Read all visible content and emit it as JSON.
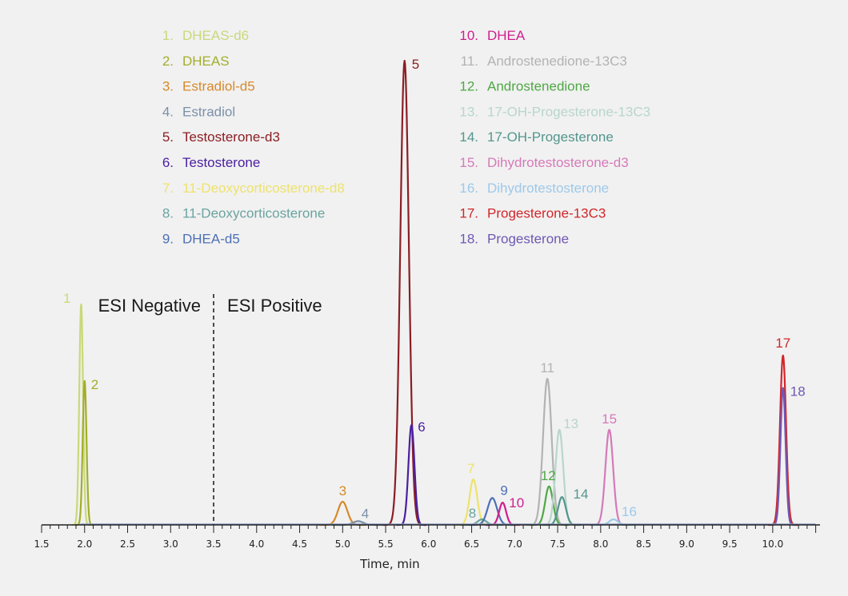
{
  "chart_data": {
    "type": "line",
    "xlabel": "Time, min",
    "xlim": [
      1.5,
      10.55
    ],
    "x_ticks": [
      "1.5",
      "2.0",
      "2.5",
      "3.0",
      "3.5",
      "4.0",
      "4.5",
      "5.0",
      "5.5",
      "6.0",
      "6.5",
      "7.0",
      "7.5",
      "8.0",
      "8.5",
      "9.0",
      "9.5",
      "10.0"
    ],
    "ylim": [
      0,
      100
    ],
    "grid": false,
    "legend_position": "top",
    "divider": {
      "x": 3.5,
      "left_label": "ESI Negative",
      "right_label": "ESI Positive"
    },
    "legend": [
      {
        "num": "1.",
        "name": "DHEAS-d6",
        "color": "#c8d97a"
      },
      {
        "num": "2.",
        "name": "DHEAS",
        "color": "#a3ae2a"
      },
      {
        "num": "3.",
        "name": "Estradiol-d5",
        "color": "#d7892b"
      },
      {
        "num": "4.",
        "name": "Estradiol",
        "color": "#7b90a8"
      },
      {
        "num": "5.",
        "name": "Testosterone-d3",
        "color": "#8b1e24"
      },
      {
        "num": "6.",
        "name": "Testosterone",
        "color": "#4b1fa0"
      },
      {
        "num": "7.",
        "name": "11-Deoxycorticosterone-d8",
        "color": "#ede36a"
      },
      {
        "num": "8.",
        "name": "11-Deoxycorticosterone",
        "color": "#6aa4a0"
      },
      {
        "num": "9.",
        "name": "DHEA-d5",
        "color": "#4e6fb5"
      },
      {
        "num": "10.",
        "name": "DHEA",
        "color": "#cf1f8e"
      },
      {
        "num": "11.",
        "name": "Androstenedione-13C3",
        "color": "#b3b3b3"
      },
      {
        "num": "12.",
        "name": "Androstenedione",
        "color": "#4fa845"
      },
      {
        "num": "13.",
        "name": "17-OH-Progesterone-13C3",
        "color": "#b8d6cc"
      },
      {
        "num": "14.",
        "name": "17-OH-Progesterone",
        "color": "#53968d"
      },
      {
        "num": "15.",
        "name": "Dihydrotestosterone-d3",
        "color": "#d57ab8"
      },
      {
        "num": "16.",
        "name": "Dihydrotestosterone",
        "color": "#9dc9ea"
      },
      {
        "num": "17.",
        "name": "Progesterone-13C3",
        "color": "#d1262b"
      },
      {
        "num": "18.",
        "name": "Progesterone",
        "color": "#6f58b3"
      }
    ],
    "series": [
      {
        "label": "1",
        "rt": 1.96,
        "height": 47.5,
        "width": 0.022,
        "color": "#c8d97a"
      },
      {
        "label": "2",
        "rt": 2.0,
        "height": 31.0,
        "width": 0.022,
        "color": "#a3ae2a"
      },
      {
        "label": "3",
        "rt": 5.0,
        "height": 5.0,
        "width": 0.055,
        "color": "#d7892b"
      },
      {
        "label": "4",
        "rt": 5.18,
        "height": 0.8,
        "width": 0.06,
        "color": "#7b90a8"
      },
      {
        "label": "5",
        "rt": 5.72,
        "height": 100,
        "width": 0.05,
        "color": "#8b1e24"
      },
      {
        "label": "6",
        "rt": 5.8,
        "height": 21.5,
        "width": 0.035,
        "color": "#4b1fa0"
      },
      {
        "label": "7",
        "rt": 6.52,
        "height": 9.8,
        "width": 0.045,
        "color": "#ede36a"
      },
      {
        "label": "8",
        "rt": 6.62,
        "height": 1.2,
        "width": 0.05,
        "color": "#6aa4a0"
      },
      {
        "label": "9",
        "rt": 6.74,
        "height": 5.8,
        "width": 0.055,
        "color": "#4e6fb5"
      },
      {
        "label": "10",
        "rt": 6.86,
        "height": 4.8,
        "width": 0.04,
        "color": "#cf1f8e"
      },
      {
        "label": "11",
        "rt": 7.38,
        "height": 31.5,
        "width": 0.05,
        "color": "#b3b3b3"
      },
      {
        "label": "12",
        "rt": 7.4,
        "height": 8.3,
        "width": 0.045,
        "color": "#4fa845"
      },
      {
        "label": "13",
        "rt": 7.52,
        "height": 20.5,
        "width": 0.045,
        "color": "#b8d6cc"
      },
      {
        "label": "14",
        "rt": 7.55,
        "height": 6.0,
        "width": 0.045,
        "color": "#53968d"
      },
      {
        "label": "15",
        "rt": 8.1,
        "height": 20.5,
        "width": 0.045,
        "color": "#d57ab8"
      },
      {
        "label": "16",
        "rt": 8.15,
        "height": 1.2,
        "width": 0.05,
        "color": "#9dc9ea"
      },
      {
        "label": "17",
        "rt": 10.12,
        "height": 36.5,
        "width": 0.035,
        "color": "#d1262b"
      },
      {
        "label": "18",
        "rt": 10.12,
        "height": 29.5,
        "width": 0.03,
        "color": "#6f58b3"
      }
    ]
  }
}
